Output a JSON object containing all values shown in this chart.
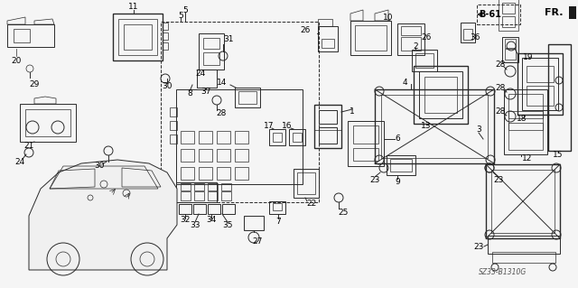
{
  "fig_size": [
    6.4,
    3.19
  ],
  "dpi": 100,
  "bg_color": "#f5f5f5",
  "line_color": "#2a2a2a",
  "lw_thick": 1.0,
  "lw_med": 0.7,
  "lw_thin": 0.5,
  "font_size": 6.5,
  "diagram_code": "SZ33-B1310G"
}
